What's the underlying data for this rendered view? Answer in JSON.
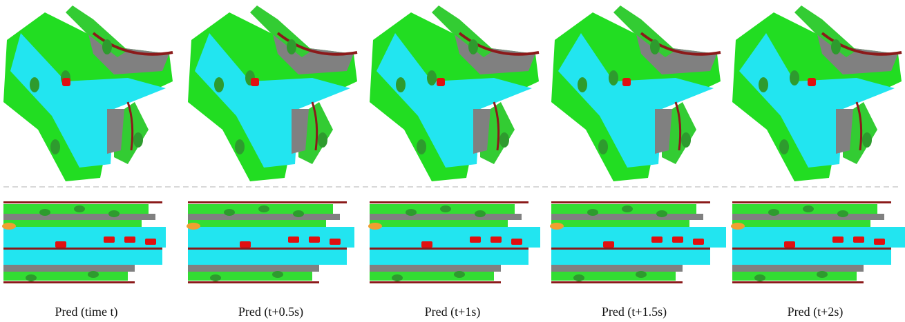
{
  "captions": [
    "Pred (time t)",
    "Pred (t+0.5s)",
    "Pred (t+1s)",
    "Pred (t+1.5s)",
    "Pred (t+2s)"
  ]
}
